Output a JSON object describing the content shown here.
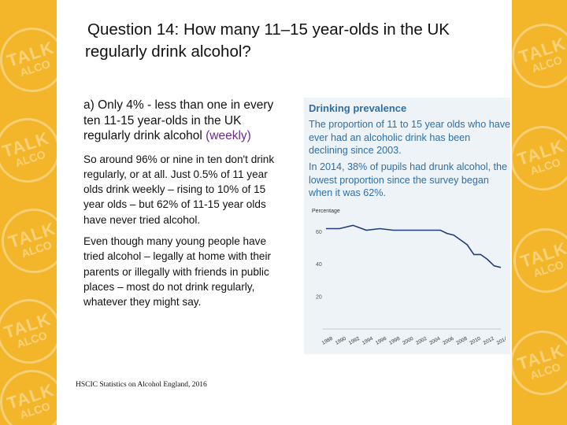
{
  "slide": {
    "title": "Question 14:  How many 11–15 year-olds in the UK regularly drink alcohol?",
    "answer_heading": "a) Only 4% - less than one in every ten 11-15 year-olds in the UK regularly drink alcohol",
    "answer_heading_emphasis": "(weekly)",
    "paragraph_1": "So around 96% or nine in ten don't drink regularly, or at all.  Just 0.5% of 11 year olds drink weekly – rising to 10% of 15 year olds – but 62% of 11-15 year olds have never tried alcohol.",
    "paragraph_2": "Even though many young people have tried alcohol – legally at home with their parents or illegally with friends in public places – most do not drink regularly, whatever they might say.",
    "source": "HSCIC Statistics on Alcohol England, 2016"
  },
  "infobox": {
    "title": "Drinking prevalence",
    "text_1": "The proportion of 11 to 15 year olds who have ever had an alcoholic drink has been declining since 2003.",
    "text_2": "In 2014, 38% of pupils had drunk alcohol, the lowest proportion since the survey began when it was 62%."
  },
  "decor": {
    "stamp_text_1": "TALK",
    "stamp_text_2": "ALCO"
  },
  "colors": {
    "background": "#f3b62a",
    "infobox_text": "#2e6fa6",
    "line": "#1f3d78",
    "emphasis": "#6b2c8c"
  },
  "chart_data": {
    "type": "line",
    "ylabel": "Percentage",
    "ylim": [
      0,
      70
    ],
    "yticks": [
      20,
      40,
      60
    ],
    "grid": false,
    "xtick_labels": [
      "1988",
      "1990",
      "1992",
      "1994",
      "1996",
      "1998",
      "2000",
      "2002",
      "2004",
      "2006",
      "2008",
      "2010",
      "2012",
      "2014"
    ],
    "x": [
      1988,
      1990,
      1992,
      1994,
      1996,
      1998,
      1999,
      2000,
      2001,
      2002,
      2003,
      2004,
      2005,
      2006,
      2007,
      2008,
      2009,
      2010,
      2011,
      2012,
      2013,
      2014
    ],
    "series": [
      {
        "values": [
          62,
          62,
          64,
          61,
          62,
          61,
          61,
          61,
          61,
          61,
          61,
          61,
          61,
          59,
          58,
          55,
          52,
          46,
          46,
          43,
          39,
          38
        ]
      }
    ]
  }
}
